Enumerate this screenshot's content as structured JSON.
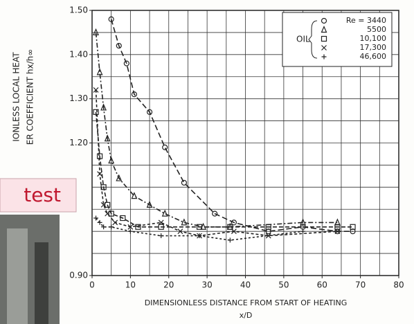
{
  "chart_data": {
    "type": "scatter",
    "y_label_lines": [
      "IONLESS LOCAL HEAT",
      "ER COEFFICIENT hx/h∞"
    ],
    "x_label_lines": [
      "DIMENSIONLESS DISTANCE FROM START OF HEATING",
      "x/D"
    ],
    "legend_title": "OIL",
    "overlay_text": "test",
    "xlim": [
      0,
      80
    ],
    "xticks": [
      0,
      10,
      20,
      30,
      40,
      50,
      60,
      70,
      80
    ],
    "ylim": [
      0.9,
      1.5
    ],
    "yticks": [
      {
        "value": 0.9,
        "label": "0.90"
      },
      {
        "value": 1.2,
        "label": "1.20"
      },
      {
        "value": 1.3,
        "label": "1.30"
      },
      {
        "value": 1.4,
        "label": "1.40"
      },
      {
        "value": 1.5,
        "label": "1.50"
      }
    ],
    "xgrid": [
      5,
      10,
      15,
      20,
      25,
      30,
      35,
      40,
      45,
      50,
      55,
      60,
      65,
      70,
      75
    ],
    "ygrid": [
      0.95,
      1.0,
      1.05,
      1.1,
      1.15,
      1.2,
      1.25,
      1.3,
      1.35,
      1.4,
      1.45
    ],
    "series": [
      {
        "name": "Re = 3440",
        "marker": "circle",
        "color": "#222222",
        "x": [
          5,
          7,
          9,
          11,
          15,
          19,
          24,
          32,
          37,
          46,
          55,
          64,
          68
        ],
        "values": [
          1.48,
          1.42,
          1.38,
          1.31,
          1.27,
          1.19,
          1.11,
          1.04,
          1.02,
          1.0,
          1.01,
          1.0,
          1.0
        ]
      },
      {
        "name": "5500",
        "marker": "triangle",
        "color": "#222222",
        "x": [
          1,
          2,
          3,
          4,
          5,
          7,
          11,
          15,
          19,
          24,
          29,
          36,
          55,
          64
        ],
        "values": [
          1.45,
          1.36,
          1.28,
          1.21,
          1.16,
          1.12,
          1.08,
          1.06,
          1.04,
          1.02,
          1.01,
          1.01,
          1.02,
          1.02
        ]
      },
      {
        "name": "10,100",
        "marker": "square",
        "color": "#222222",
        "x": [
          1,
          2,
          3,
          4,
          5,
          8,
          12,
          18,
          28,
          36,
          46,
          64,
          68
        ],
        "values": [
          1.27,
          1.17,
          1.1,
          1.06,
          1.04,
          1.03,
          1.01,
          1.01,
          1.01,
          1.01,
          1.01,
          1.01,
          1.01
        ]
      },
      {
        "name": "17,300",
        "marker": "x",
        "color": "#222222",
        "x": [
          1,
          2,
          3,
          4,
          6,
          10,
          18,
          23,
          28,
          37,
          46,
          64
        ],
        "values": [
          1.32,
          1.13,
          1.06,
          1.04,
          1.02,
          1.01,
          1.02,
          1.0,
          0.99,
          1.0,
          0.99,
          1.0
        ]
      },
      {
        "name": "46,600",
        "marker": "plus",
        "color": "#222222",
        "x": [
          1,
          2,
          3,
          5,
          10,
          18,
          28,
          36,
          55
        ],
        "values": [
          1.03,
          1.02,
          1.01,
          1.01,
          1.0,
          0.99,
          0.99,
          0.98,
          1.0
        ]
      }
    ]
  }
}
